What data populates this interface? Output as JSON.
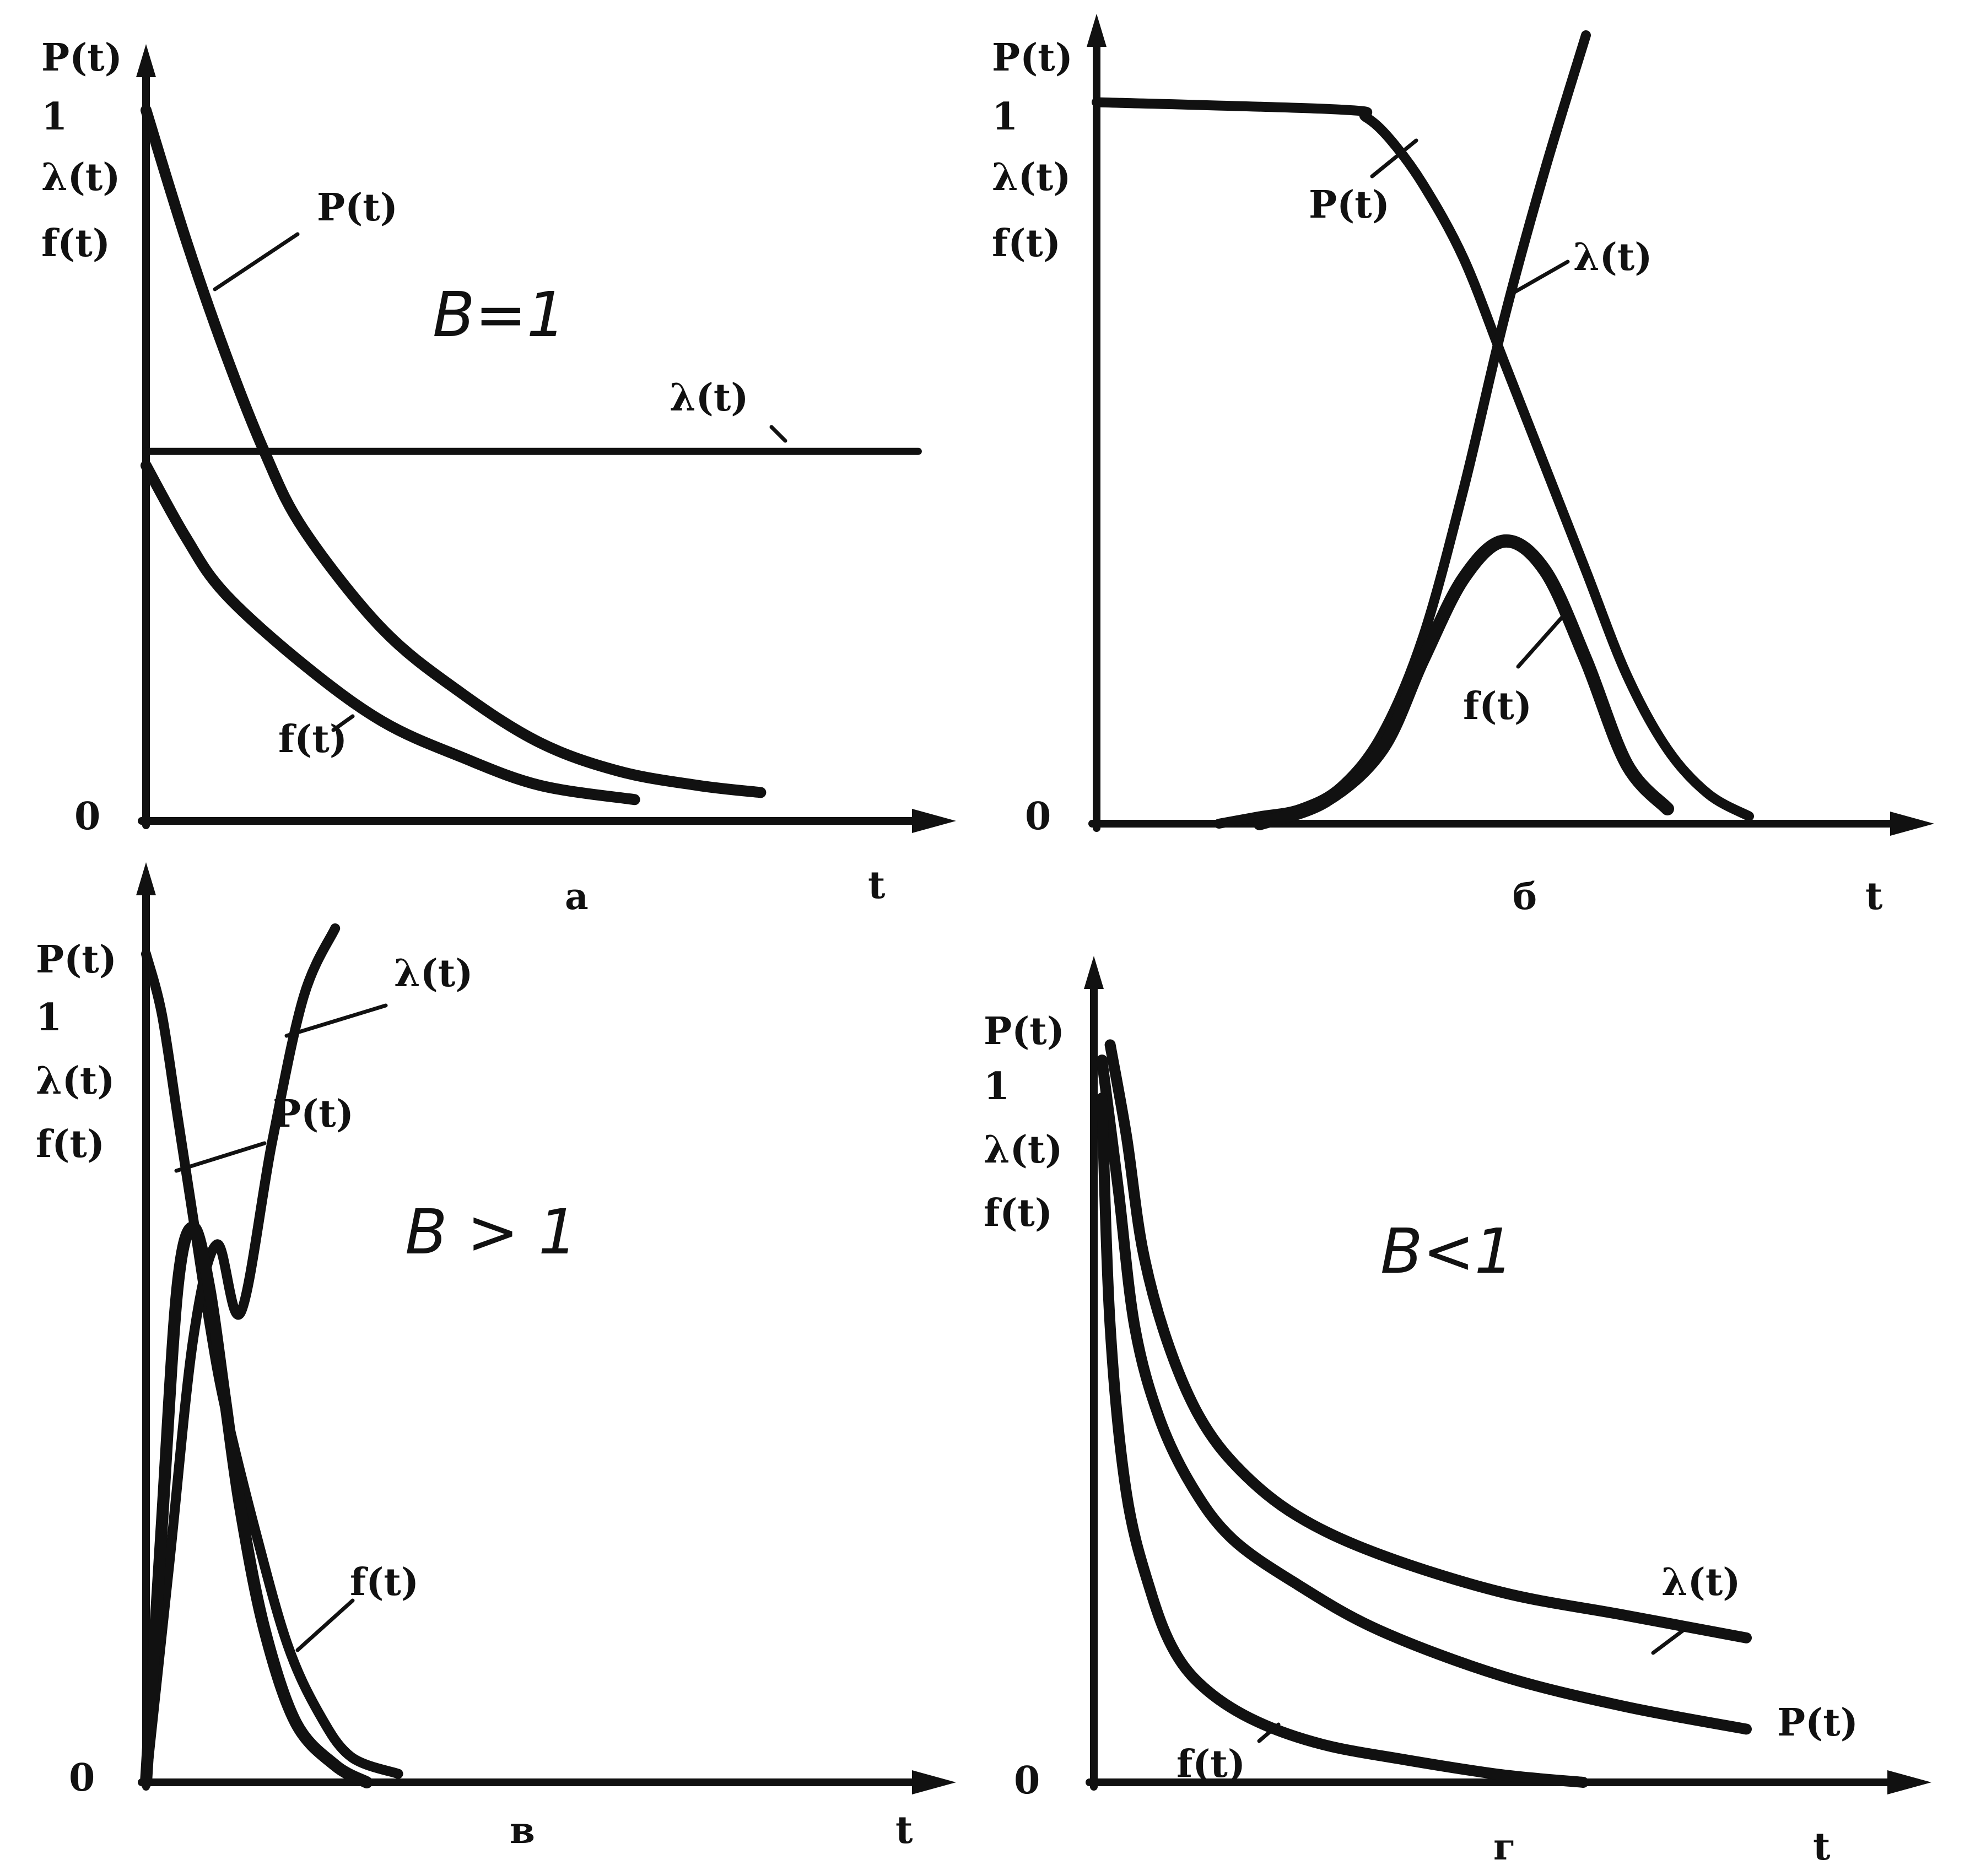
{
  "chart_data": [
    {
      "panel": "a",
      "type": "line",
      "title": "B=1",
      "ylabels": [
        "P(t)",
        "1",
        "λ(t)",
        "f(t)"
      ],
      "y_zero_label": "0",
      "xlabel": "t",
      "xlim": [
        0,
        1
      ],
      "ylim": [
        0,
        1
      ],
      "grid": false,
      "series": [
        {
          "name": "P(t)",
          "x": [
            0,
            0.05,
            0.1,
            0.15,
            0.2,
            0.3,
            0.4,
            0.5,
            0.6,
            0.7,
            0.78
          ],
          "y": [
            1.0,
            0.82,
            0.66,
            0.52,
            0.41,
            0.27,
            0.18,
            0.11,
            0.07,
            0.05,
            0.04
          ]
        },
        {
          "name": "λ(t)",
          "x": [
            0,
            0.2,
            0.4,
            0.6,
            0.8,
            0.98
          ],
          "y": [
            0.52,
            0.52,
            0.52,
            0.52,
            0.52,
            0.52
          ]
        },
        {
          "name": "f(t)",
          "x": [
            0,
            0.05,
            0.1,
            0.2,
            0.3,
            0.4,
            0.5,
            0.62
          ],
          "y": [
            0.5,
            0.4,
            0.32,
            0.22,
            0.14,
            0.09,
            0.05,
            0.03
          ]
        }
      ]
    },
    {
      "panel": "б",
      "type": "line",
      "title": "",
      "ylabels": [
        "P(t)",
        "1",
        "λ(t)",
        "f(t)"
      ],
      "y_zero_label": "0",
      "xlabel": "t",
      "xlim": [
        0,
        1
      ],
      "ylim": [
        0,
        1
      ],
      "grid": false,
      "series": [
        {
          "name": "P(t)",
          "x": [
            0,
            0.3,
            0.33,
            0.36,
            0.4,
            0.45,
            0.5,
            0.55,
            0.6,
            0.65,
            0.7,
            0.75,
            0.8
          ],
          "y": [
            0.97,
            0.96,
            0.95,
            0.92,
            0.86,
            0.76,
            0.62,
            0.48,
            0.34,
            0.2,
            0.1,
            0.04,
            0.01
          ]
        },
        {
          "name": "λ(t)",
          "x": [
            0.15,
            0.2,
            0.25,
            0.3,
            0.35,
            0.4,
            0.45,
            0.5,
            0.55,
            0.6
          ],
          "y": [
            0.0,
            0.01,
            0.02,
            0.05,
            0.12,
            0.25,
            0.45,
            0.68,
            0.88,
            1.06
          ]
        },
        {
          "name": "f(t)",
          "x": [
            0.2,
            0.28,
            0.35,
            0.4,
            0.45,
            0.5,
            0.55,
            0.6,
            0.65,
            0.7
          ],
          "y": [
            0.0,
            0.03,
            0.1,
            0.22,
            0.33,
            0.38,
            0.34,
            0.22,
            0.08,
            0.02
          ]
        }
      ]
    },
    {
      "panel": "в",
      "type": "line",
      "title": "B > 1",
      "ylabels": [
        "P(t)",
        "1",
        "λ(t)",
        "f(t)"
      ],
      "y_zero_label": "0",
      "xlabel": "t",
      "xlim": [
        0,
        1
      ],
      "ylim": [
        0,
        1
      ],
      "grid": false,
      "series": [
        {
          "name": "P(t)",
          "x": [
            0,
            0.02,
            0.04,
            0.06,
            0.08,
            0.1,
            0.14,
            0.18,
            0.22,
            0.26,
            0.32
          ],
          "y": [
            0.97,
            0.9,
            0.78,
            0.66,
            0.54,
            0.44,
            0.29,
            0.16,
            0.08,
            0.03,
            0.01
          ]
        },
        {
          "name": "λ(t)",
          "x": [
            0,
            0.03,
            0.06,
            0.09,
            0.12,
            0.16,
            0.2,
            0.24
          ],
          "y": [
            0.0,
            0.26,
            0.52,
            0.63,
            0.55,
            0.75,
            0.92,
            1.0
          ]
        },
        {
          "name": "f(t)",
          "x": [
            0,
            0.02,
            0.04,
            0.06,
            0.08,
            0.1,
            0.12,
            0.15,
            0.19,
            0.24,
            0.28
          ],
          "y": [
            0.0,
            0.3,
            0.58,
            0.65,
            0.58,
            0.45,
            0.32,
            0.18,
            0.07,
            0.02,
            0.0
          ]
        }
      ]
    },
    {
      "panel": "г",
      "type": "line",
      "title": "B<1",
      "ylabels": [
        "P(t)",
        "1",
        "λ(t)",
        "f(t)"
      ],
      "y_zero_label": "0",
      "xlabel": "t",
      "xlim": [
        0,
        1
      ],
      "ylim": [
        0,
        1
      ],
      "grid": false,
      "series": [
        {
          "name": "λ(t)",
          "x": [
            0.02,
            0.04,
            0.06,
            0.09,
            0.13,
            0.18,
            0.25,
            0.35,
            0.5,
            0.65,
            0.8
          ],
          "y": [
            0.97,
            0.85,
            0.7,
            0.58,
            0.48,
            0.41,
            0.35,
            0.3,
            0.25,
            0.22,
            0.19
          ]
        },
        {
          "name": "P(t)",
          "x": [
            0.01,
            0.03,
            0.05,
            0.08,
            0.12,
            0.17,
            0.25,
            0.35,
            0.5,
            0.65,
            0.8
          ],
          "y": [
            0.95,
            0.78,
            0.6,
            0.48,
            0.39,
            0.32,
            0.26,
            0.2,
            0.14,
            0.1,
            0.07
          ]
        },
        {
          "name": "f(t)",
          "x": [
            0.01,
            0.02,
            0.04,
            0.07,
            0.1,
            0.14,
            0.2,
            0.28,
            0.38,
            0.5,
            0.6
          ],
          "y": [
            0.9,
            0.6,
            0.38,
            0.25,
            0.17,
            0.12,
            0.08,
            0.05,
            0.03,
            0.01,
            0.0
          ]
        }
      ]
    }
  ]
}
